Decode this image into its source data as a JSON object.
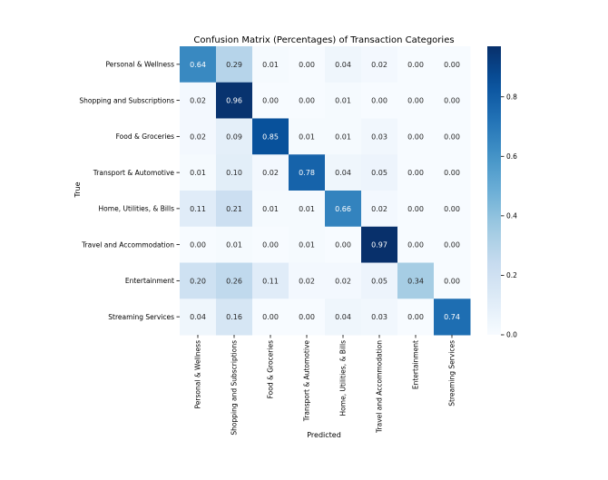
{
  "chart_data": {
    "type": "heatmap",
    "title": "Confusion Matrix (Percentages) of Transaction Categories",
    "xlabel": "Predicted",
    "ylabel": "True",
    "row_labels": [
      "Personal & Wellness",
      "Shopping and Subscriptions",
      "Food & Groceries",
      "Transport & Automotive",
      "Home, Utilities, & Bills",
      "Travel and Accommodation",
      "Entertainment",
      "Streaming Services"
    ],
    "col_labels": [
      "Personal & Wellness",
      "Shopping and Subscriptions",
      "Food & Groceries",
      "Transport & Automotive",
      "Home, Utilities, & Bills",
      "Travel and Accommodation",
      "Entertainment",
      "Streaming Services"
    ],
    "values": [
      [
        0.64,
        0.29,
        0.01,
        0.0,
        0.04,
        0.02,
        0.0,
        0.0
      ],
      [
        0.02,
        0.96,
        0.0,
        0.0,
        0.01,
        0.0,
        0.0,
        0.0
      ],
      [
        0.02,
        0.09,
        0.85,
        0.01,
        0.01,
        0.03,
        0.0,
        0.0
      ],
      [
        0.01,
        0.1,
        0.02,
        0.78,
        0.04,
        0.05,
        0.0,
        0.0
      ],
      [
        0.11,
        0.21,
        0.01,
        0.01,
        0.66,
        0.02,
        0.0,
        0.0
      ],
      [
        0.0,
        0.01,
        0.0,
        0.01,
        0.0,
        0.97,
        0.0,
        0.0
      ],
      [
        0.2,
        0.26,
        0.11,
        0.02,
        0.02,
        0.05,
        0.34,
        0.0
      ],
      [
        0.04,
        0.16,
        0.0,
        0.0,
        0.04,
        0.03,
        0.0,
        0.74
      ]
    ],
    "colormap": "Blues",
    "colorbar": {
      "range": [
        0.0,
        0.97
      ],
      "ticks": [
        "0.0",
        "0.2",
        "0.4",
        "0.6",
        "0.8"
      ]
    }
  }
}
